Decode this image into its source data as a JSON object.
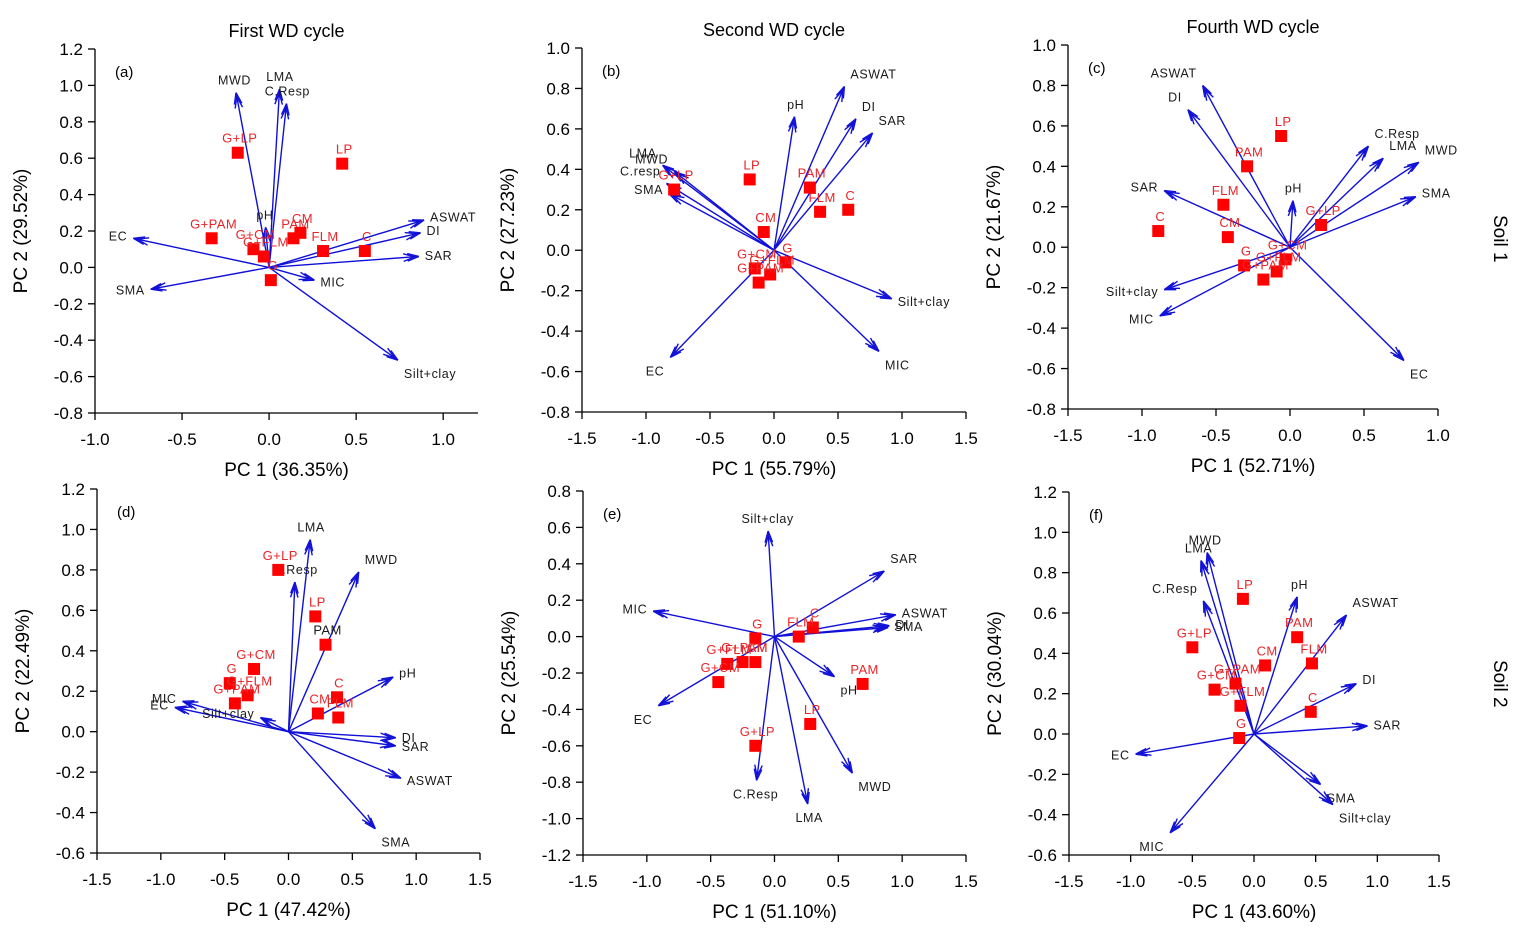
{
  "figure": {
    "row_labels": [
      "Soil 1",
      "Soil 2"
    ],
    "column_titles": [
      "First WD cycle",
      "Second WD cycle",
      "Fourth WD cycle"
    ]
  },
  "chart_data": [
    {
      "id": "a",
      "letter": "(a)",
      "type": "scatter",
      "title": "First WD cycle",
      "xlabel": "PC 1 (36.35%)",
      "ylabel": "PC 2 (29.52%)",
      "xlim": [
        -1.0,
        1.2
      ],
      "ylim": [
        -0.8,
        1.2
      ],
      "xticks": [
        -1.0,
        -0.5,
        0.0,
        0.5,
        1.0
      ],
      "yticks": [
        -0.8,
        -0.6,
        -0.4,
        -0.2,
        0.0,
        0.2,
        0.4,
        0.6,
        0.8,
        1.0,
        1.2
      ],
      "row": "Soil 1",
      "treatments": [
        {
          "name": "G+LP",
          "x": -0.18,
          "y": 0.63
        },
        {
          "name": "LP",
          "x": 0.42,
          "y": 0.57
        },
        {
          "name": "G+PAM",
          "x": -0.33,
          "y": 0.16
        },
        {
          "name": "G+CM",
          "x": -0.09,
          "y": 0.1
        },
        {
          "name": "G+FLM",
          "x": -0.03,
          "y": 0.06
        },
        {
          "name": "G",
          "x": 0.01,
          "y": -0.07
        },
        {
          "name": "PAM",
          "x": 0.14,
          "y": 0.16
        },
        {
          "name": "CM",
          "x": 0.18,
          "y": 0.19
        },
        {
          "name": "FLM",
          "x": 0.31,
          "y": 0.09
        },
        {
          "name": "C",
          "x": 0.55,
          "y": 0.09
        }
      ],
      "variables": [
        {
          "name": "MWD",
          "x": -0.19,
          "y": 0.96
        },
        {
          "name": "LMA",
          "x": 0.06,
          "y": 0.98
        },
        {
          "name": "C.Resp",
          "x": 0.1,
          "y": 0.9
        },
        {
          "name": "pH",
          "x": -0.02,
          "y": 0.22
        },
        {
          "name": "ASWAT",
          "x": 0.89,
          "y": 0.26
        },
        {
          "name": "DI",
          "x": 0.87,
          "y": 0.19
        },
        {
          "name": "SAR",
          "x": 0.86,
          "y": 0.06
        },
        {
          "name": "MIC",
          "x": 0.26,
          "y": -0.07
        },
        {
          "name": "Silt+clay",
          "x": 0.74,
          "y": -0.51
        },
        {
          "name": "EC",
          "x": -0.78,
          "y": 0.16
        },
        {
          "name": "SMA",
          "x": -0.68,
          "y": -0.12
        }
      ]
    },
    {
      "id": "b",
      "letter": "(b)",
      "type": "scatter",
      "title": "Second WD cycle",
      "xlabel": "PC 1 (55.79%)",
      "ylabel": "PC 2 (27.23%)",
      "xlim": [
        -1.5,
        1.5
      ],
      "ylim": [
        -0.8,
        1.0
      ],
      "xticks": [
        -1.5,
        -1.0,
        -0.5,
        0.0,
        0.5,
        1.0,
        1.5
      ],
      "yticks": [
        -0.8,
        -0.6,
        -0.4,
        -0.2,
        0.0,
        0.2,
        0.4,
        0.6,
        0.8,
        1.0
      ],
      "row": "Soil 1",
      "treatments": [
        {
          "name": "G+LP",
          "x": -0.78,
          "y": 0.3
        },
        {
          "name": "LP",
          "x": -0.19,
          "y": 0.35
        },
        {
          "name": "PAM",
          "x": 0.28,
          "y": 0.31
        },
        {
          "name": "FLM",
          "x": 0.36,
          "y": 0.19
        },
        {
          "name": "C",
          "x": 0.58,
          "y": 0.2
        },
        {
          "name": "CM",
          "x": -0.08,
          "y": 0.09
        },
        {
          "name": "G",
          "x": 0.09,
          "y": -0.06
        },
        {
          "name": "G+CM",
          "x": -0.15,
          "y": -0.09
        },
        {
          "name": "G+FLM",
          "x": -0.03,
          "y": -0.12
        },
        {
          "name": "G+PAM",
          "x": -0.12,
          "y": -0.16
        }
      ],
      "variables": [
        {
          "name": "ASWAT",
          "x": 0.55,
          "y": 0.81
        },
        {
          "name": "pH",
          "x": 0.16,
          "y": 0.66
        },
        {
          "name": "DI",
          "x": 0.64,
          "y": 0.65
        },
        {
          "name": "SAR",
          "x": 0.77,
          "y": 0.58
        },
        {
          "name": "LMA",
          "x": -0.87,
          "y": 0.42
        },
        {
          "name": "MWD",
          "x": -0.78,
          "y": 0.39
        },
        {
          "name": "C.resp",
          "x": -0.84,
          "y": 0.33
        },
        {
          "name": "SMA",
          "x": -0.82,
          "y": 0.28
        },
        {
          "name": "Silt+clay",
          "x": 0.92,
          "y": -0.24
        },
        {
          "name": "MIC",
          "x": 0.82,
          "y": -0.5
        },
        {
          "name": "EC",
          "x": -0.81,
          "y": -0.53
        }
      ]
    },
    {
      "id": "c",
      "letter": "(c)",
      "type": "scatter",
      "title": "Fourth WD cycle",
      "xlabel": "PC 1 (52.71%)",
      "ylabel": "PC 2 (21.67%)",
      "xlim": [
        -1.5,
        1.0
      ],
      "ylim": [
        -0.8,
        1.0
      ],
      "xticks": [
        -1.5,
        -1.0,
        -0.5,
        0.0,
        0.5,
        1.0
      ],
      "yticks": [
        -0.8,
        -0.6,
        -0.4,
        -0.2,
        0.0,
        0.2,
        0.4,
        0.6,
        0.8,
        1.0
      ],
      "row": "Soil 1",
      "treatments": [
        {
          "name": "LP",
          "x": -0.06,
          "y": 0.55
        },
        {
          "name": "PAM",
          "x": -0.29,
          "y": 0.4
        },
        {
          "name": "FLM",
          "x": -0.45,
          "y": 0.21
        },
        {
          "name": "C",
          "x": -0.89,
          "y": 0.08
        },
        {
          "name": "CM",
          "x": -0.42,
          "y": 0.05
        },
        {
          "name": "G+LP",
          "x": 0.21,
          "y": 0.11
        },
        {
          "name": "G",
          "x": -0.31,
          "y": -0.09
        },
        {
          "name": "G+CM",
          "x": -0.03,
          "y": -0.06
        },
        {
          "name": "G+FLM",
          "x": -0.09,
          "y": -0.12
        },
        {
          "name": "G+PAM",
          "x": -0.18,
          "y": -0.16
        }
      ],
      "variables": [
        {
          "name": "ASWAT",
          "x": -0.59,
          "y": 0.8
        },
        {
          "name": "DI",
          "x": -0.69,
          "y": 0.68
        },
        {
          "name": "SAR",
          "x": -0.85,
          "y": 0.28
        },
        {
          "name": "pH",
          "x": 0.02,
          "y": 0.23
        },
        {
          "name": "C.Resp",
          "x": 0.53,
          "y": 0.5
        },
        {
          "name": "LMA",
          "x": 0.63,
          "y": 0.44
        },
        {
          "name": "MWD",
          "x": 0.87,
          "y": 0.42
        },
        {
          "name": "SMA",
          "x": 0.85,
          "y": 0.25
        },
        {
          "name": "Silt+clay",
          "x": -0.85,
          "y": -0.21
        },
        {
          "name": "MIC",
          "x": -0.88,
          "y": -0.34
        },
        {
          "name": "EC",
          "x": 0.77,
          "y": -0.56
        }
      ]
    },
    {
      "id": "d",
      "letter": "(d)",
      "type": "scatter",
      "title": "",
      "xlabel": "PC 1 (47.42%)",
      "ylabel": "PC 2 (22.49%)",
      "xlim": [
        -1.5,
        1.5
      ],
      "ylim": [
        -0.6,
        1.2
      ],
      "xticks": [
        -1.5,
        -1.0,
        -0.5,
        0.0,
        0.5,
        1.0,
        1.5
      ],
      "yticks": [
        -0.6,
        -0.4,
        -0.2,
        0.0,
        0.2,
        0.4,
        0.6,
        0.8,
        1.0,
        1.2
      ],
      "row": "Soil 2",
      "treatments": [
        {
          "name": "G+LP",
          "x": -0.08,
          "y": 0.8
        },
        {
          "name": "LP",
          "x": 0.21,
          "y": 0.57
        },
        {
          "name": "PAM",
          "x": 0.29,
          "y": 0.43,
          "label_color": "black"
        },
        {
          "name": "G+CM",
          "x": -0.27,
          "y": 0.31
        },
        {
          "name": "G",
          "x": -0.46,
          "y": 0.24
        },
        {
          "name": "G+FLM",
          "x": -0.32,
          "y": 0.18
        },
        {
          "name": "G+PAM",
          "x": -0.42,
          "y": 0.14
        },
        {
          "name": "C",
          "x": 0.38,
          "y": 0.17
        },
        {
          "name": "CM",
          "x": 0.23,
          "y": 0.09
        },
        {
          "name": "FLM",
          "x": 0.39,
          "y": 0.07
        }
      ],
      "variables": [
        {
          "name": "LMA",
          "x": 0.17,
          "y": 0.95
        },
        {
          "name": "C.Resp",
          "x": 0.05,
          "y": 0.74
        },
        {
          "name": "MWD",
          "x": 0.55,
          "y": 0.79
        },
        {
          "name": "pH",
          "x": 0.82,
          "y": 0.27
        },
        {
          "name": "DI",
          "x": 0.84,
          "y": -0.03
        },
        {
          "name": "SAR",
          "x": 0.84,
          "y": -0.07
        },
        {
          "name": "ASWAT",
          "x": 0.88,
          "y": -0.23
        },
        {
          "name": "SMA",
          "x": 0.68,
          "y": -0.48
        },
        {
          "name": "MIC",
          "x": -0.83,
          "y": 0.15
        },
        {
          "name": "EC",
          "x": -0.89,
          "y": 0.12
        },
        {
          "name": "Silt+clay",
          "x": -0.22,
          "y": 0.07
        }
      ]
    },
    {
      "id": "e",
      "letter": "(e)",
      "type": "scatter",
      "title": "",
      "xlabel": "PC 1 (51.10%)",
      "ylabel": "PC 2 (25.54%)",
      "xlim": [
        -1.5,
        1.5
      ],
      "ylim": [
        -1.2,
        0.8
      ],
      "xticks": [
        -1.5,
        -1.0,
        -0.5,
        0.0,
        0.5,
        1.0,
        1.5
      ],
      "yticks": [
        -1.2,
        -1.0,
        -0.8,
        -0.6,
        -0.4,
        -0.2,
        0.0,
        0.2,
        0.4,
        0.6,
        0.8
      ],
      "row": "Soil 2",
      "treatments": [
        {
          "name": "C",
          "x": 0.3,
          "y": 0.05
        },
        {
          "name": "FLM",
          "x": 0.19,
          "y": 0.0
        },
        {
          "name": "G",
          "x": -0.15,
          "y": -0.01
        },
        {
          "name": "G+PAM",
          "x": -0.25,
          "y": -0.14
        },
        {
          "name": "CM",
          "x": -0.15,
          "y": -0.14
        },
        {
          "name": "G+FLM",
          "x": -0.37,
          "y": -0.15
        },
        {
          "name": "G+CM",
          "x": -0.44,
          "y": -0.25
        },
        {
          "name": "PAM",
          "x": 0.69,
          "y": -0.26
        },
        {
          "name": "LP",
          "x": 0.28,
          "y": -0.48
        },
        {
          "name": "G+LP",
          "x": -0.15,
          "y": -0.6
        }
      ],
      "variables": [
        {
          "name": "Silt+clay",
          "x": -0.05,
          "y": 0.58
        },
        {
          "name": "SAR",
          "x": 0.86,
          "y": 0.36
        },
        {
          "name": "ASWAT",
          "x": 0.95,
          "y": 0.12
        },
        {
          "name": "DI",
          "x": 0.9,
          "y": 0.06
        },
        {
          "name": "SMA",
          "x": 0.89,
          "y": 0.05
        },
        {
          "name": "MIC",
          "x": -0.95,
          "y": 0.14
        },
        {
          "name": "EC",
          "x": -0.91,
          "y": -0.38
        },
        {
          "name": "pH",
          "x": 0.47,
          "y": -0.22
        },
        {
          "name": "MWD",
          "x": 0.61,
          "y": -0.75
        },
        {
          "name": "LMA",
          "x": 0.26,
          "y": -0.92
        },
        {
          "name": "C.Resp",
          "x": -0.14,
          "y": -0.79
        }
      ]
    },
    {
      "id": "f",
      "letter": "(f)",
      "type": "scatter",
      "title": "",
      "xlabel": "PC 1 (43.60%)",
      "ylabel": "PC 2 (30.04%)",
      "xlim": [
        -1.5,
        1.5
      ],
      "ylim": [
        -0.6,
        1.2
      ],
      "xticks": [
        -1.5,
        -1.0,
        -0.5,
        0.0,
        0.5,
        1.0,
        1.5
      ],
      "yticks": [
        -0.6,
        -0.4,
        -0.2,
        0.0,
        0.2,
        0.4,
        0.6,
        0.8,
        1.0,
        1.2
      ],
      "row": "Soil 2",
      "treatments": [
        {
          "name": "LP",
          "x": -0.09,
          "y": 0.67
        },
        {
          "name": "PAM",
          "x": 0.35,
          "y": 0.48
        },
        {
          "name": "FLM",
          "x": 0.47,
          "y": 0.35
        },
        {
          "name": "CM",
          "x": 0.09,
          "y": 0.34
        },
        {
          "name": "G+LP",
          "x": -0.5,
          "y": 0.43
        },
        {
          "name": "G+PAM",
          "x": -0.15,
          "y": 0.25
        },
        {
          "name": "G+CM",
          "x": -0.32,
          "y": 0.22
        },
        {
          "name": "G+FLM",
          "x": -0.11,
          "y": 0.14
        },
        {
          "name": "C",
          "x": 0.46,
          "y": 0.11
        },
        {
          "name": "G",
          "x": -0.12,
          "y": -0.02
        }
      ],
      "variables": [
        {
          "name": "MWD",
          "x": -0.38,
          "y": 0.9
        },
        {
          "name": "LMA",
          "x": -0.43,
          "y": 0.86
        },
        {
          "name": "C.Resp",
          "x": -0.41,
          "y": 0.66
        },
        {
          "name": "pH",
          "x": 0.35,
          "y": 0.68
        },
        {
          "name": "ASWAT",
          "x": 0.75,
          "y": 0.59
        },
        {
          "name": "DI",
          "x": 0.83,
          "y": 0.25
        },
        {
          "name": "SAR",
          "x": 0.92,
          "y": 0.04
        },
        {
          "name": "SMA",
          "x": 0.54,
          "y": -0.25
        },
        {
          "name": "Silt+clay",
          "x": 0.64,
          "y": -0.35
        },
        {
          "name": "EC",
          "x": -0.96,
          "y": -0.1
        },
        {
          "name": "MIC",
          "x": -0.68,
          "y": -0.49
        }
      ]
    }
  ]
}
